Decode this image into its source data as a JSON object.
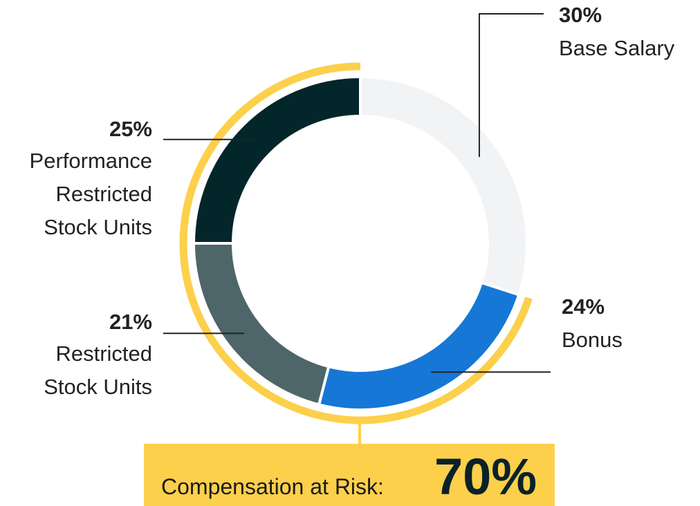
{
  "chart_data": {
    "type": "pie",
    "categories": [
      "Base Salary",
      "Bonus",
      "Restricted Stock Units",
      "Performance Restricted Stock Units"
    ],
    "values": [
      30,
      24,
      21,
      25
    ],
    "value_labels": [
      "30%",
      "24%",
      "21%",
      "25%"
    ],
    "label_lines": [
      [
        "Base Salary"
      ],
      [
        "Bonus"
      ],
      [
        "Restricted",
        "Stock Units"
      ],
      [
        "Performance",
        "Restricted",
        "Stock Units"
      ]
    ],
    "colors": [
      "#f2f3f5",
      "#1677d6",
      "#4e6669",
      "#03262b"
    ],
    "style": "donut",
    "at_risk": {
      "label": "Compensation at Risk:",
      "value": "70%",
      "value_number": 70,
      "color": "#fcd04b"
    }
  }
}
